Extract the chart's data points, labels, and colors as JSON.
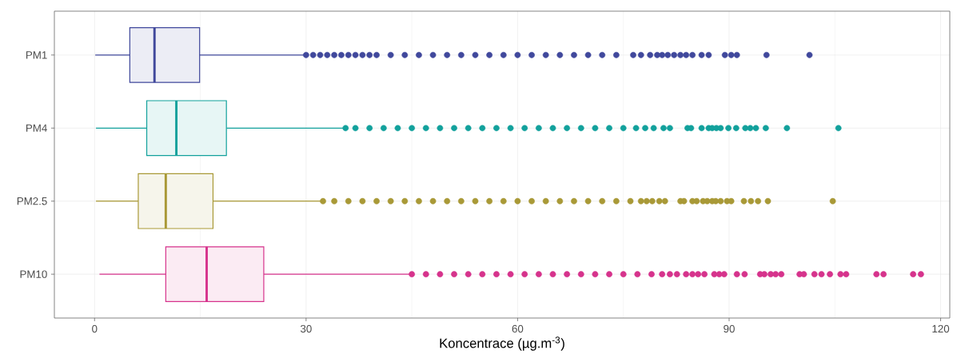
{
  "chart_data": {
    "type": "box",
    "orientation": "horizontal",
    "categories": [
      "PM1",
      "PM4",
      "PM2.5",
      "PM10"
    ],
    "colors": [
      "#40489c",
      "#12a19c",
      "#a99937",
      "#d6338c"
    ],
    "xlabel": "Koncentrace (µg.m$^{-3}$)",
    "xlim": [
      -5.7,
      121.3
    ],
    "xticks": [
      0,
      30,
      60,
      90,
      120
    ],
    "grid": true,
    "boxes": [
      {
        "low": 0.1,
        "q1": 5.0,
        "median": 8.5,
        "q3": 14.9,
        "high": 29.7,
        "outliers": [
          30,
          31,
          32,
          33,
          34,
          35,
          36,
          37,
          38,
          39,
          40,
          42,
          44,
          46,
          48,
          50,
          52,
          54,
          56,
          58,
          60,
          62,
          64,
          66,
          68,
          70,
          72,
          74,
          76.4,
          77.5,
          78.8,
          79.8,
          80.5,
          81.3,
          82.2,
          83.1,
          83.9,
          84.8,
          86.1,
          87.1,
          89.4,
          90.3,
          91.1,
          95.3,
          101.4
        ]
      },
      {
        "low": 0.2,
        "q1": 7.4,
        "median": 11.6,
        "q3": 18.7,
        "high": 35.4,
        "outliers": [
          35.6,
          37,
          39,
          41,
          43,
          45,
          47,
          49,
          51,
          53,
          55,
          57,
          59,
          61,
          63,
          65,
          67,
          69,
          71,
          73,
          75,
          76.8,
          78.1,
          79.3,
          80.7,
          81.6,
          84.1,
          84.6,
          86.1,
          87.1,
          87.6,
          88.2,
          88.8,
          89.9,
          91.0,
          92.3,
          93.0,
          93.8,
          95.2,
          98.2,
          105.5
        ]
      },
      {
        "low": 0.2,
        "q1": 6.2,
        "median": 10.1,
        "q3": 16.8,
        "high": 32.2,
        "outliers": [
          32.4,
          34,
          36,
          38,
          40,
          42,
          44,
          46,
          48,
          50,
          52,
          54,
          56,
          58,
          60,
          62,
          64,
          66,
          68,
          70,
          72,
          74,
          76,
          77.5,
          78.3,
          79.1,
          80.1,
          80.9,
          83.1,
          83.6,
          84.8,
          85.4,
          86.3,
          86.9,
          87.6,
          88.1,
          88.8,
          89.7,
          90.3,
          92.1,
          93.1,
          94.1,
          95.5,
          104.7
        ]
      },
      {
        "low": 0.7,
        "q1": 10.1,
        "median": 15.9,
        "q3": 24.0,
        "high": 44.7,
        "outliers": [
          45,
          47,
          49,
          51,
          53,
          55,
          57,
          59,
          61,
          63,
          65,
          67,
          69,
          71,
          73,
          75,
          77,
          79,
          80.5,
          81.6,
          82.6,
          83.9,
          84.8,
          85.6,
          86.5,
          87.9,
          88.6,
          89.3,
          91.1,
          92.2,
          94.4,
          95.0,
          95.9,
          96.6,
          97.4,
          100.0,
          100.6,
          102.1,
          103.1,
          104.3,
          105.8,
          106.6,
          110.9,
          111.9,
          116.1,
          117.2
        ]
      }
    ]
  }
}
